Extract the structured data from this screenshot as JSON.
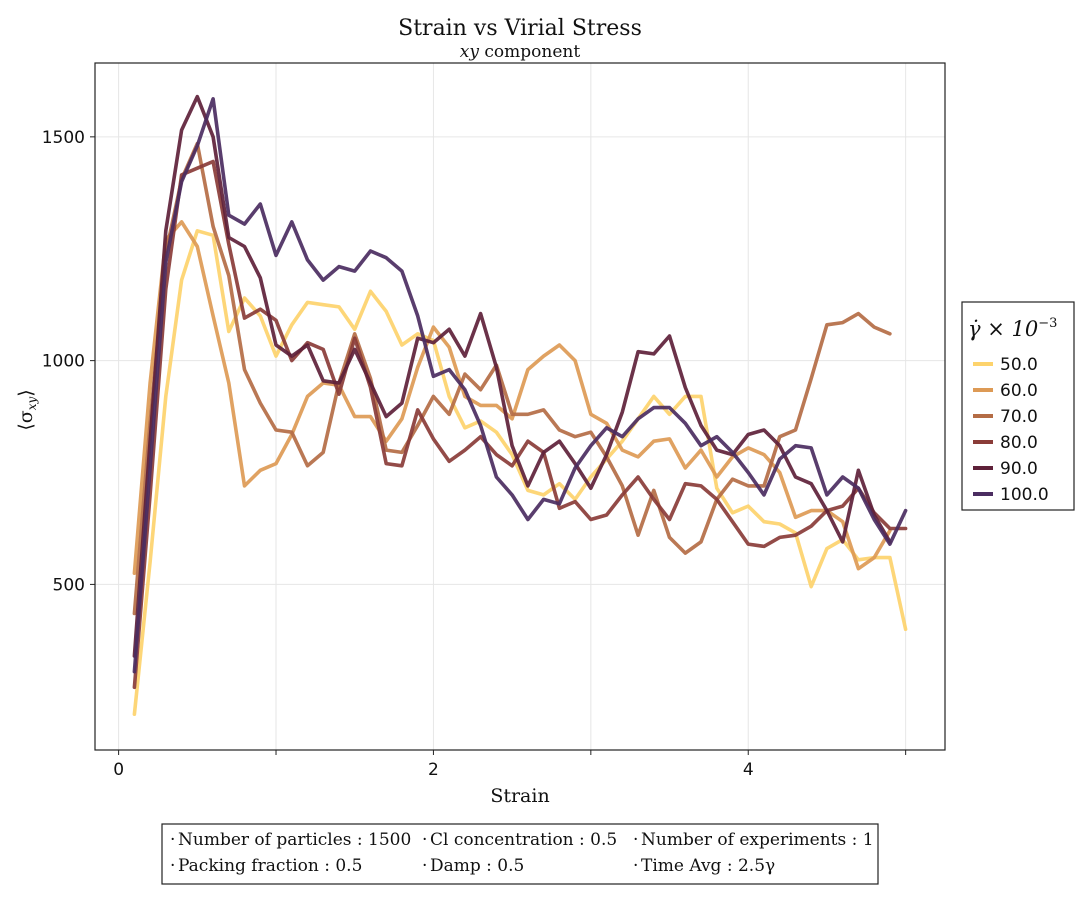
{
  "chart_data": {
    "type": "line",
    "title": "Strain vs Virial Stress",
    "subtitle_italic": "xy",
    "subtitle_rest": " component",
    "xlabel": "Strain",
    "ylabel": "⟨σ",
    "ylabel_sub": "xy",
    "ylabel_close": "⟩",
    "xlim": [
      -0.15,
      5.25
    ],
    "ylim": [
      130,
      1665
    ],
    "xticks": [
      0,
      2,
      4
    ],
    "xticks_minor": [
      1,
      3,
      5
    ],
    "yticks": [
      500,
      1000,
      1500
    ],
    "grid": true,
    "legend_title_main": "γ̇ × 10",
    "legend_title_exp": "−3",
    "legend_position": "right",
    "series": [
      {
        "name": "50.0",
        "color": "#fdd36c",
        "values": [
          [
            0.1,
            210
          ],
          [
            0.2,
            550
          ],
          [
            0.3,
            920
          ],
          [
            0.4,
            1180
          ],
          [
            0.5,
            1290
          ],
          [
            0.6,
            1280
          ],
          [
            0.7,
            1065
          ],
          [
            0.8,
            1140
          ],
          [
            0.9,
            1100
          ],
          [
            1.0,
            1010
          ],
          [
            1.1,
            1080
          ],
          [
            1.2,
            1130
          ],
          [
            1.3,
            1125
          ],
          [
            1.4,
            1120
          ],
          [
            1.5,
            1070
          ],
          [
            1.6,
            1155
          ],
          [
            1.7,
            1110
          ],
          [
            1.8,
            1035
          ],
          [
            1.9,
            1060
          ],
          [
            2.0,
            1045
          ],
          [
            2.1,
            920
          ],
          [
            2.2,
            850
          ],
          [
            2.3,
            865
          ],
          [
            2.4,
            840
          ],
          [
            2.5,
            790
          ],
          [
            2.6,
            710
          ],
          [
            2.7,
            700
          ],
          [
            2.8,
            725
          ],
          [
            2.9,
            690
          ],
          [
            3.0,
            740
          ],
          [
            3.1,
            780
          ],
          [
            3.2,
            820
          ],
          [
            3.3,
            870
          ],
          [
            3.4,
            920
          ],
          [
            3.5,
            880
          ],
          [
            3.6,
            920
          ],
          [
            3.7,
            920
          ],
          [
            3.8,
            715
          ],
          [
            3.9,
            660
          ],
          [
            4.0,
            675
          ],
          [
            4.1,
            640
          ],
          [
            4.2,
            635
          ],
          [
            4.3,
            615
          ],
          [
            4.4,
            495
          ],
          [
            4.5,
            580
          ],
          [
            4.6,
            600
          ],
          [
            4.7,
            555
          ],
          [
            4.8,
            560
          ],
          [
            4.9,
            560
          ],
          [
            5.0,
            400
          ]
        ]
      },
      {
        "name": "60.0",
        "color": "#dd9a55",
        "values": [
          [
            0.1,
            525
          ],
          [
            0.2,
            950
          ],
          [
            0.3,
            1270
          ],
          [
            0.4,
            1310
          ],
          [
            0.5,
            1255
          ],
          [
            0.6,
            1100
          ],
          [
            0.7,
            950
          ],
          [
            0.8,
            720
          ],
          [
            0.9,
            755
          ],
          [
            1.0,
            770
          ],
          [
            1.1,
            835
          ],
          [
            1.2,
            920
          ],
          [
            1.3,
            950
          ],
          [
            1.4,
            945
          ],
          [
            1.5,
            875
          ],
          [
            1.6,
            875
          ],
          [
            1.7,
            820
          ],
          [
            1.8,
            870
          ],
          [
            1.9,
            985
          ],
          [
            2.0,
            1075
          ],
          [
            2.1,
            1030
          ],
          [
            2.2,
            920
          ],
          [
            2.3,
            900
          ],
          [
            2.4,
            900
          ],
          [
            2.5,
            870
          ],
          [
            2.6,
            980
          ],
          [
            2.7,
            1010
          ],
          [
            2.8,
            1035
          ],
          [
            2.9,
            1000
          ],
          [
            3.0,
            880
          ],
          [
            3.1,
            860
          ],
          [
            3.2,
            800
          ],
          [
            3.3,
            785
          ],
          [
            3.4,
            820
          ],
          [
            3.5,
            825
          ],
          [
            3.6,
            760
          ],
          [
            3.7,
            800
          ],
          [
            3.8,
            740
          ],
          [
            3.9,
            785
          ],
          [
            4.0,
            805
          ],
          [
            4.1,
            790
          ],
          [
            4.2,
            750
          ],
          [
            4.3,
            650
          ],
          [
            4.4,
            665
          ],
          [
            4.5,
            665
          ],
          [
            4.6,
            640
          ],
          [
            4.7,
            535
          ],
          [
            4.8,
            560
          ],
          [
            4.9,
            620
          ]
        ]
      },
      {
        "name": "70.0",
        "color": "#b46c45",
        "values": [
          [
            0.1,
            435
          ],
          [
            0.2,
            860
          ],
          [
            0.3,
            1240
          ],
          [
            0.4,
            1405
          ],
          [
            0.5,
            1485
          ],
          [
            0.6,
            1300
          ],
          [
            0.7,
            1190
          ],
          [
            0.8,
            980
          ],
          [
            0.9,
            905
          ],
          [
            1.0,
            845
          ],
          [
            1.1,
            840
          ],
          [
            1.2,
            765
          ],
          [
            1.3,
            795
          ],
          [
            1.4,
            950
          ],
          [
            1.5,
            1060
          ],
          [
            1.6,
            960
          ],
          [
            1.7,
            800
          ],
          [
            1.8,
            795
          ],
          [
            1.9,
            855
          ],
          [
            2.0,
            920
          ],
          [
            2.1,
            880
          ],
          [
            2.2,
            970
          ],
          [
            2.3,
            935
          ],
          [
            2.4,
            990
          ],
          [
            2.5,
            880
          ],
          [
            2.6,
            880
          ],
          [
            2.7,
            890
          ],
          [
            2.8,
            845
          ],
          [
            2.9,
            830
          ],
          [
            3.0,
            840
          ],
          [
            3.1,
            785
          ],
          [
            3.2,
            720
          ],
          [
            3.3,
            610
          ],
          [
            3.4,
            710
          ],
          [
            3.5,
            605
          ],
          [
            3.6,
            570
          ],
          [
            3.7,
            595
          ],
          [
            3.8,
            690
          ],
          [
            3.9,
            735
          ],
          [
            4.0,
            720
          ],
          [
            4.1,
            720
          ],
          [
            4.2,
            830
          ],
          [
            4.3,
            845
          ],
          [
            4.4,
            960
          ],
          [
            4.5,
            1080
          ],
          [
            4.6,
            1085
          ],
          [
            4.7,
            1105
          ],
          [
            4.8,
            1075
          ],
          [
            4.9,
            1060
          ]
        ]
      },
      {
        "name": "80.0",
        "color": "#8a3c38",
        "values": [
          [
            0.1,
            270
          ],
          [
            0.2,
            700
          ],
          [
            0.3,
            1160
          ],
          [
            0.4,
            1415
          ],
          [
            0.5,
            1430
          ],
          [
            0.6,
            1445
          ],
          [
            0.7,
            1260
          ],
          [
            0.8,
            1095
          ],
          [
            0.9,
            1115
          ],
          [
            1.0,
            1090
          ],
          [
            1.1,
            1000
          ],
          [
            1.2,
            1040
          ],
          [
            1.3,
            1025
          ],
          [
            1.4,
            925
          ],
          [
            1.5,
            1050
          ],
          [
            1.6,
            940
          ],
          [
            1.7,
            770
          ],
          [
            1.8,
            765
          ],
          [
            1.9,
            890
          ],
          [
            2.0,
            825
          ],
          [
            2.1,
            775
          ],
          [
            2.2,
            800
          ],
          [
            2.3,
            830
          ],
          [
            2.4,
            790
          ],
          [
            2.5,
            765
          ],
          [
            2.6,
            820
          ],
          [
            2.7,
            795
          ],
          [
            2.8,
            670
          ],
          [
            2.9,
            685
          ],
          [
            3.0,
            645
          ],
          [
            3.1,
            655
          ],
          [
            3.2,
            700
          ],
          [
            3.3,
            740
          ],
          [
            3.4,
            690
          ],
          [
            3.5,
            645
          ],
          [
            3.6,
            725
          ],
          [
            3.7,
            720
          ],
          [
            3.8,
            690
          ],
          [
            3.9,
            640
          ],
          [
            4.0,
            590
          ],
          [
            4.1,
            585
          ],
          [
            4.2,
            605
          ],
          [
            4.3,
            610
          ],
          [
            4.4,
            630
          ],
          [
            4.5,
            665
          ],
          [
            4.6,
            675
          ],
          [
            4.7,
            715
          ],
          [
            4.8,
            660
          ],
          [
            4.9,
            625
          ],
          [
            5.0,
            625
          ]
        ]
      },
      {
        "name": "90.0",
        "color": "#5e2139",
        "values": [
          [
            0.1,
            340
          ],
          [
            0.2,
            820
          ],
          [
            0.3,
            1290
          ],
          [
            0.4,
            1515
          ],
          [
            0.5,
            1590
          ],
          [
            0.6,
            1500
          ],
          [
            0.7,
            1275
          ],
          [
            0.8,
            1255
          ],
          [
            0.9,
            1185
          ],
          [
            1.0,
            1035
          ],
          [
            1.1,
            1010
          ],
          [
            1.2,
            1035
          ],
          [
            1.3,
            955
          ],
          [
            1.4,
            950
          ],
          [
            1.5,
            1025
          ],
          [
            1.6,
            950
          ],
          [
            1.7,
            875
          ],
          [
            1.8,
            905
          ],
          [
            1.9,
            1050
          ],
          [
            2.0,
            1040
          ],
          [
            2.1,
            1070
          ],
          [
            2.2,
            1010
          ],
          [
            2.3,
            1105
          ],
          [
            2.4,
            985
          ],
          [
            2.5,
            810
          ],
          [
            2.6,
            720
          ],
          [
            2.7,
            795
          ],
          [
            2.8,
            820
          ],
          [
            2.9,
            770
          ],
          [
            3.0,
            715
          ],
          [
            3.1,
            790
          ],
          [
            3.2,
            885
          ],
          [
            3.3,
            1020
          ],
          [
            3.4,
            1015
          ],
          [
            3.5,
            1055
          ],
          [
            3.6,
            940
          ],
          [
            3.7,
            855
          ],
          [
            3.8,
            800
          ],
          [
            3.9,
            790
          ],
          [
            4.0,
            835
          ],
          [
            4.1,
            845
          ],
          [
            4.2,
            810
          ],
          [
            4.3,
            740
          ],
          [
            4.4,
            725
          ],
          [
            4.5,
            665
          ],
          [
            4.6,
            595
          ],
          [
            4.7,
            755
          ],
          [
            4.8,
            655
          ],
          [
            4.9,
            595
          ]
        ]
      },
      {
        "name": "100.0",
        "color": "#4b2d61",
        "values": [
          [
            0.1,
            305
          ],
          [
            0.2,
            760
          ],
          [
            0.3,
            1220
          ],
          [
            0.4,
            1400
          ],
          [
            0.5,
            1480
          ],
          [
            0.6,
            1585
          ],
          [
            0.7,
            1325
          ],
          [
            0.8,
            1305
          ],
          [
            0.9,
            1350
          ],
          [
            1.0,
            1235
          ],
          [
            1.1,
            1310
          ],
          [
            1.2,
            1225
          ],
          [
            1.3,
            1180
          ],
          [
            1.4,
            1210
          ],
          [
            1.5,
            1200
          ],
          [
            1.6,
            1245
          ],
          [
            1.7,
            1230
          ],
          [
            1.8,
            1200
          ],
          [
            1.9,
            1100
          ],
          [
            2.0,
            965
          ],
          [
            2.1,
            980
          ],
          [
            2.2,
            935
          ],
          [
            2.3,
            855
          ],
          [
            2.4,
            740
          ],
          [
            2.5,
            700
          ],
          [
            2.6,
            645
          ],
          [
            2.7,
            690
          ],
          [
            2.8,
            680
          ],
          [
            2.9,
            760
          ],
          [
            3.0,
            810
          ],
          [
            3.1,
            850
          ],
          [
            3.2,
            830
          ],
          [
            3.3,
            870
          ],
          [
            3.4,
            895
          ],
          [
            3.5,
            895
          ],
          [
            3.6,
            860
          ],
          [
            3.7,
            810
          ],
          [
            3.8,
            830
          ],
          [
            3.9,
            795
          ],
          [
            4.0,
            750
          ],
          [
            4.1,
            700
          ],
          [
            4.2,
            780
          ],
          [
            4.3,
            810
          ],
          [
            4.4,
            805
          ],
          [
            4.5,
            700
          ],
          [
            4.6,
            740
          ],
          [
            4.7,
            715
          ],
          [
            4.8,
            645
          ],
          [
            4.9,
            590
          ],
          [
            5.0,
            665
          ]
        ]
      }
    ]
  },
  "info_box": [
    {
      "label": "Number of particles",
      "value": "1500"
    },
    {
      "label": "Cl concentration",
      "value": "0.5"
    },
    {
      "label": "Number of experiments",
      "value": "1"
    },
    {
      "label": "Packing fraction",
      "value": "0.5"
    },
    {
      "label": "Damp",
      "value": "0.5"
    },
    {
      "label": "Time Avg",
      "value": "2.5γ"
    }
  ]
}
